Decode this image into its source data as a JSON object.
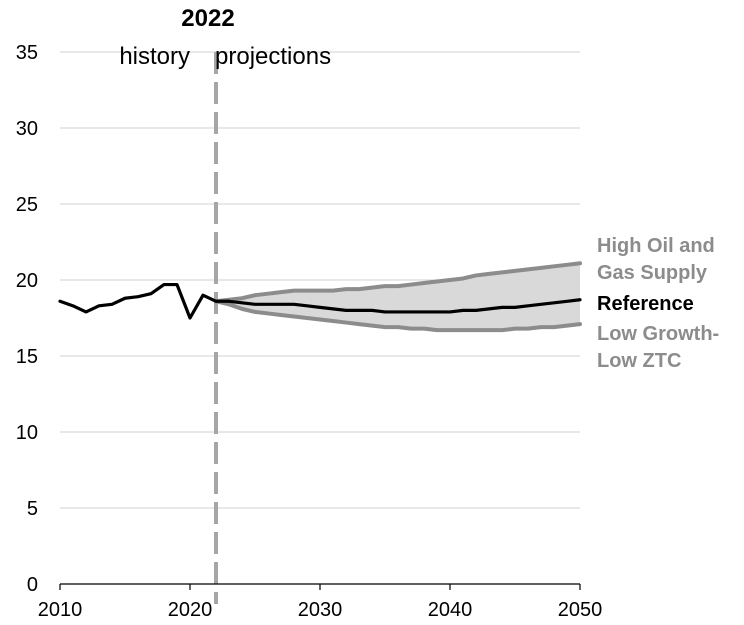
{
  "chart_data": {
    "type": "line",
    "title": "",
    "xlabel": "",
    "ylabel": "",
    "xlim": [
      2010,
      2050
    ],
    "ylim": [
      0,
      35
    ],
    "x_ticks": [
      2010,
      2020,
      2030,
      2040,
      2050
    ],
    "y_ticks": [
      0,
      5,
      10,
      15,
      20,
      25,
      30,
      35
    ],
    "grid": "horizontal",
    "divider": {
      "year": 2022,
      "label": "2022",
      "left_label": "history",
      "right_label": "projections"
    },
    "colors": {
      "reference": "#000000",
      "side_cases": "#8c8c8c",
      "band_fill": "#d9d9d9",
      "divider": "#a6a6a6",
      "grid": "#d9d9d9"
    },
    "series": [
      {
        "name": "Reference",
        "label_lines": [
          "Reference"
        ],
        "color": "#000000",
        "x": [
          2010,
          2011,
          2012,
          2013,
          2014,
          2015,
          2016,
          2017,
          2018,
          2019,
          2020,
          2021,
          2022,
          2023,
          2024,
          2025,
          2026,
          2027,
          2028,
          2029,
          2030,
          2031,
          2032,
          2033,
          2034,
          2035,
          2036,
          2037,
          2038,
          2039,
          2040,
          2041,
          2042,
          2043,
          2044,
          2045,
          2046,
          2047,
          2048,
          2049,
          2050
        ],
        "values": [
          18.6,
          18.3,
          17.9,
          18.3,
          18.4,
          18.8,
          18.9,
          19.1,
          19.7,
          19.7,
          17.5,
          19.0,
          18.6,
          18.6,
          18.5,
          18.4,
          18.4,
          18.4,
          18.4,
          18.3,
          18.2,
          18.1,
          18.0,
          18.0,
          18.0,
          17.9,
          17.9,
          17.9,
          17.9,
          17.9,
          17.9,
          18.0,
          18.0,
          18.1,
          18.2,
          18.2,
          18.3,
          18.4,
          18.5,
          18.6,
          18.7
        ]
      },
      {
        "name": "High Oil and Gas Supply",
        "label_lines": [
          "High Oil and",
          "Gas Supply"
        ],
        "color": "#8c8c8c",
        "x": [
          2022,
          2023,
          2024,
          2025,
          2026,
          2027,
          2028,
          2029,
          2030,
          2031,
          2032,
          2033,
          2034,
          2035,
          2036,
          2037,
          2038,
          2039,
          2040,
          2041,
          2042,
          2043,
          2044,
          2045,
          2046,
          2047,
          2048,
          2049,
          2050
        ],
        "values": [
          18.6,
          18.7,
          18.8,
          19.0,
          19.1,
          19.2,
          19.3,
          19.3,
          19.3,
          19.3,
          19.4,
          19.4,
          19.5,
          19.6,
          19.6,
          19.7,
          19.8,
          19.9,
          20.0,
          20.1,
          20.3,
          20.4,
          20.5,
          20.6,
          20.7,
          20.8,
          20.9,
          21.0,
          21.1
        ]
      },
      {
        "name": "Low Growth-Low ZTC",
        "label_lines": [
          "Low Growth-",
          "Low ZTC"
        ],
        "color": "#8c8c8c",
        "x": [
          2022,
          2023,
          2024,
          2025,
          2026,
          2027,
          2028,
          2029,
          2030,
          2031,
          2032,
          2033,
          2034,
          2035,
          2036,
          2037,
          2038,
          2039,
          2040,
          2041,
          2042,
          2043,
          2044,
          2045,
          2046,
          2047,
          2048,
          2049,
          2050
        ],
        "values": [
          18.6,
          18.4,
          18.1,
          17.9,
          17.8,
          17.7,
          17.6,
          17.5,
          17.4,
          17.3,
          17.2,
          17.1,
          17.0,
          16.9,
          16.9,
          16.8,
          16.8,
          16.7,
          16.7,
          16.7,
          16.7,
          16.7,
          16.7,
          16.8,
          16.8,
          16.9,
          16.9,
          17.0,
          17.1
        ]
      }
    ]
  }
}
